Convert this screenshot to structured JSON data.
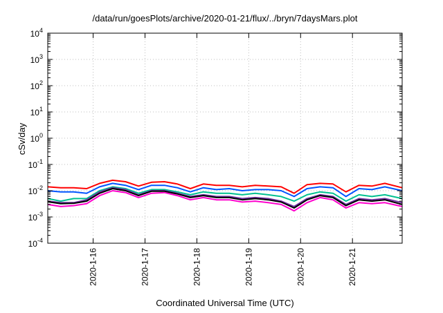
{
  "chart_data": {
    "type": "line",
    "title": "/data/run/goesPlots/archive/2020-01-21/flux/../bryn/7daysMars.plot",
    "xlabel": "Coordinated Universal Time (UTC)",
    "ylabel": "cSv/day",
    "y_scale": "log",
    "ylim": [
      0.0001,
      10000
    ],
    "y_ticks": [
      {
        "base": "10",
        "exp": "-4",
        "value": 0.0001
      },
      {
        "base": "10",
        "exp": "-3",
        "value": 0.001
      },
      {
        "base": "10",
        "exp": "-2",
        "value": 0.01
      },
      {
        "base": "10",
        "exp": "-1",
        "value": 0.1
      },
      {
        "base": "10",
        "exp": "0",
        "value": 1
      },
      {
        "base": "10",
        "exp": "1",
        "value": 10
      },
      {
        "base": "10",
        "exp": "2",
        "value": 100
      },
      {
        "base": "10",
        "exp": "3",
        "value": 1000
      },
      {
        "base": "10",
        "exp": "4",
        "value": 10000
      }
    ],
    "xlim": [
      "2020-01-15 03:00",
      "2020-01-21 23:00"
    ],
    "x_ticks": [
      {
        "label": "2020-1-16",
        "date": "2020-01-16 00:00"
      },
      {
        "label": "2020-1-17",
        "date": "2020-01-17 00:00"
      },
      {
        "label": "2020-1-18",
        "date": "2020-01-18 00:00"
      },
      {
        "label": "2020-1-19",
        "date": "2020-01-19 00:00"
      },
      {
        "label": "2020-1-20",
        "date": "2020-01-20 00:00"
      },
      {
        "label": "2020-1-21",
        "date": "2020-01-21 00:00"
      }
    ],
    "grid": true,
    "legend": "none",
    "x": [
      "2020-01-15 03:00",
      "2020-01-15 09:00",
      "2020-01-15 15:00",
      "2020-01-15 21:00",
      "2020-01-16 03:00",
      "2020-01-16 09:00",
      "2020-01-16 15:00",
      "2020-01-16 21:00",
      "2020-01-17 03:00",
      "2020-01-17 09:00",
      "2020-01-17 15:00",
      "2020-01-17 21:00",
      "2020-01-18 03:00",
      "2020-01-18 09:00",
      "2020-01-18 15:00",
      "2020-01-18 21:00",
      "2020-01-19 03:00",
      "2020-01-19 09:00",
      "2020-01-19 15:00",
      "2020-01-19 21:00",
      "2020-01-20 03:00",
      "2020-01-20 09:00",
      "2020-01-20 15:00",
      "2020-01-20 21:00",
      "2020-01-21 03:00",
      "2020-01-21 09:00",
      "2020-01-21 15:00",
      "2020-01-21 23:00"
    ],
    "series": [
      {
        "color": "#ff0000",
        "values": [
          0.014,
          0.013,
          0.013,
          0.012,
          0.019,
          0.025,
          0.022,
          0.015,
          0.021,
          0.022,
          0.018,
          0.012,
          0.018,
          0.016,
          0.016,
          0.014,
          0.016,
          0.015,
          0.014,
          0.008,
          0.017,
          0.019,
          0.018,
          0.009,
          0.016,
          0.015,
          0.019,
          0.013
        ]
      },
      {
        "color": "#0055ff",
        "values": [
          0.01,
          0.009,
          0.009,
          0.008,
          0.014,
          0.019,
          0.016,
          0.011,
          0.016,
          0.016,
          0.013,
          0.009,
          0.013,
          0.011,
          0.012,
          0.01,
          0.011,
          0.011,
          0.01,
          0.006,
          0.012,
          0.014,
          0.013,
          0.006,
          0.012,
          0.011,
          0.014,
          0.01
        ]
      },
      {
        "color": "#00c090",
        "values": [
          0.005,
          0.004,
          0.005,
          0.005,
          0.01,
          0.014,
          0.012,
          0.008,
          0.011,
          0.011,
          0.009,
          0.007,
          0.009,
          0.008,
          0.008,
          0.007,
          0.008,
          0.007,
          0.006,
          0.004,
          0.007,
          0.009,
          0.008,
          0.004,
          0.007,
          0.006,
          0.007,
          0.005
        ]
      },
      {
        "color": "#7030a0",
        "values": [
          0.004,
          0.0035,
          0.0035,
          0.0045,
          0.009,
          0.013,
          0.011,
          0.007,
          0.01,
          0.01,
          0.008,
          0.006,
          0.007,
          0.006,
          0.006,
          0.005,
          0.0055,
          0.005,
          0.004,
          0.0025,
          0.005,
          0.007,
          0.006,
          0.003,
          0.005,
          0.0045,
          0.005,
          0.0035
        ]
      },
      {
        "color": "#000000",
        "values": [
          0.0038,
          0.0032,
          0.0033,
          0.004,
          0.008,
          0.012,
          0.01,
          0.0065,
          0.0095,
          0.0095,
          0.0075,
          0.0055,
          0.0065,
          0.0055,
          0.0055,
          0.0045,
          0.005,
          0.0045,
          0.0037,
          0.0022,
          0.0045,
          0.0065,
          0.0055,
          0.0027,
          0.0045,
          0.004,
          0.0045,
          0.003
        ]
      },
      {
        "color": "#ff00cc",
        "values": [
          0.003,
          0.0025,
          0.0027,
          0.0032,
          0.0065,
          0.01,
          0.0085,
          0.0055,
          0.008,
          0.0085,
          0.0065,
          0.0045,
          0.0055,
          0.0045,
          0.0045,
          0.0037,
          0.004,
          0.0035,
          0.003,
          0.0017,
          0.0035,
          0.0055,
          0.0045,
          0.0022,
          0.0035,
          0.0032,
          0.0035,
          0.0025
        ]
      }
    ]
  }
}
